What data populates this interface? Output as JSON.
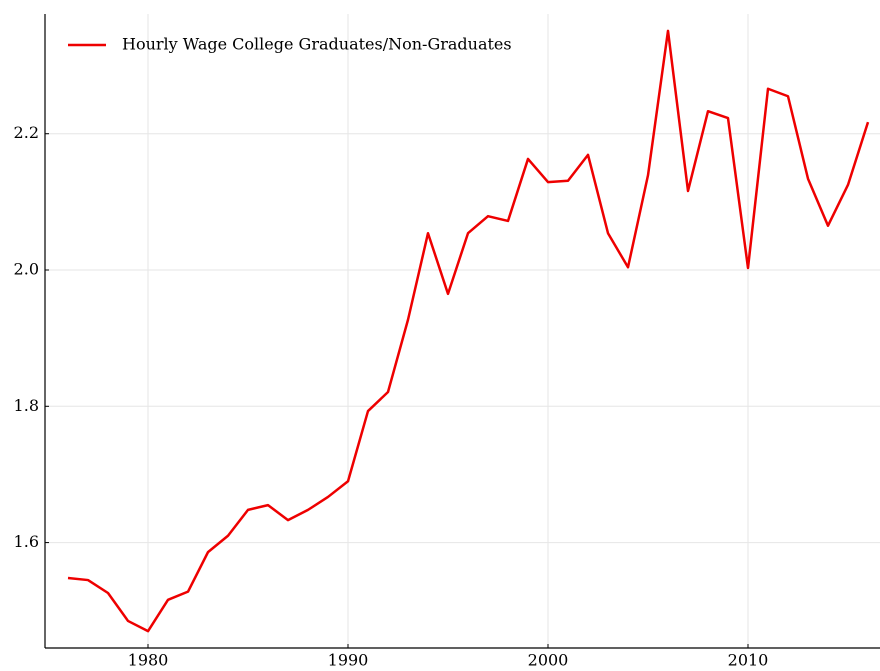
{
  "chart_data": {
    "type": "line",
    "x": [
      1976,
      1977,
      1978,
      1979,
      1980,
      1981,
      1982,
      1983,
      1984,
      1985,
      1986,
      1987,
      1988,
      1989,
      1990,
      1991,
      1992,
      1993,
      1994,
      1995,
      1996,
      1997,
      1998,
      1999,
      2000,
      2001,
      2002,
      2003,
      2004,
      2005,
      2006,
      2007,
      2008,
      2009,
      2010,
      2011,
      2012,
      2013,
      2014,
      2015,
      2016
    ],
    "series": [
      {
        "name": "Hourly Wage College Graduates/Non-Graduates",
        "color": "#ee0000",
        "values": [
          1.548,
          1.545,
          1.526,
          1.485,
          1.47,
          1.516,
          1.528,
          1.586,
          1.61,
          1.648,
          1.655,
          1.633,
          1.648,
          1.667,
          1.69,
          1.793,
          1.821,
          1.927,
          2.054,
          1.965,
          2.054,
          2.079,
          2.072,
          2.163,
          2.129,
          2.131,
          2.169,
          2.054,
          2.004,
          2.139,
          2.351,
          2.116,
          2.233,
          2.223,
          2.003,
          2.266,
          2.255,
          2.134,
          2.065,
          2.125,
          2.217
        ]
      }
    ],
    "xlim": [
      1974.85,
      2016.6
    ],
    "xticks": [
      1980,
      1990,
      2000,
      2010
    ],
    "ylim": [
      1.4453,
      2.3757
    ],
    "yticks": [
      1.6,
      1.8,
      {
        "value": 2,
        "label": "2.0"
      },
      2.2
    ],
    "grid": true,
    "legend": "upper-left"
  }
}
